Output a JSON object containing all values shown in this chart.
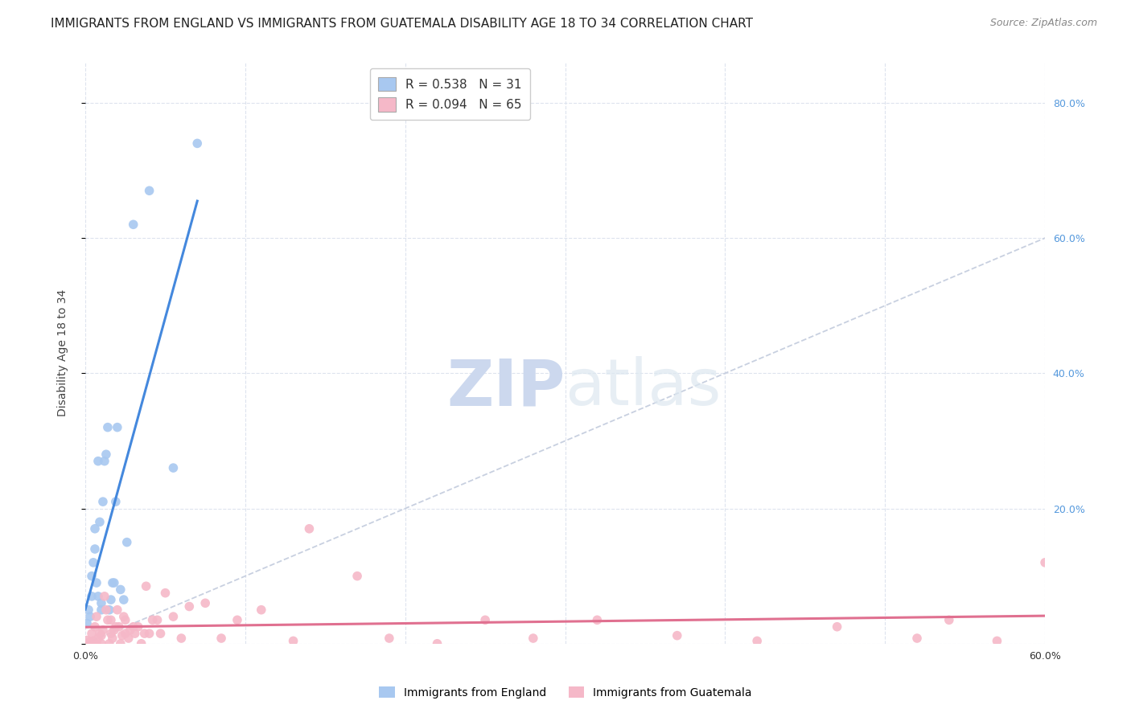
{
  "title": "IMMIGRANTS FROM ENGLAND VS IMMIGRANTS FROM GUATEMALA DISABILITY AGE 18 TO 34 CORRELATION CHART",
  "source": "Source: ZipAtlas.com",
  "ylabel": "Disability Age 18 to 34",
  "xlim": [
    0.0,
    0.6
  ],
  "ylim": [
    0.0,
    0.86
  ],
  "xticks": [
    0.0,
    0.1,
    0.2,
    0.3,
    0.4,
    0.5,
    0.6
  ],
  "xtick_labels": [
    "0.0%",
    "",
    "",
    "",
    "",
    "",
    "60.0%"
  ],
  "yticks": [
    0.0,
    0.2,
    0.4,
    0.6,
    0.8
  ],
  "ytick_labels_right": [
    "",
    "20.0%",
    "40.0%",
    "60.0%",
    "80.0%"
  ],
  "england_color": "#a8c8f0",
  "guatemala_color": "#f5b8c8",
  "england_line_color": "#4488dd",
  "guatemala_line_color": "#e07090",
  "diagonal_color": "#c8d0e0",
  "england_R": 0.538,
  "england_N": 31,
  "guatemala_R": 0.094,
  "guatemala_N": 65,
  "england_x": [
    0.001,
    0.002,
    0.003,
    0.004,
    0.004,
    0.005,
    0.006,
    0.006,
    0.007,
    0.008,
    0.008,
    0.009,
    0.01,
    0.01,
    0.011,
    0.012,
    0.013,
    0.014,
    0.015,
    0.016,
    0.017,
    0.018,
    0.019,
    0.02,
    0.022,
    0.024,
    0.026,
    0.03,
    0.04,
    0.055,
    0.07
  ],
  "england_y": [
    0.03,
    0.05,
    0.04,
    0.07,
    0.1,
    0.12,
    0.14,
    0.17,
    0.09,
    0.07,
    0.27,
    0.18,
    0.06,
    0.05,
    0.21,
    0.27,
    0.28,
    0.32,
    0.05,
    0.065,
    0.09,
    0.09,
    0.21,
    0.32,
    0.08,
    0.065,
    0.15,
    0.62,
    0.67,
    0.26,
    0.74
  ],
  "guatemala_x": [
    0.0,
    0.001,
    0.002,
    0.003,
    0.004,
    0.005,
    0.006,
    0.007,
    0.007,
    0.008,
    0.009,
    0.01,
    0.01,
    0.011,
    0.012,
    0.013,
    0.014,
    0.015,
    0.016,
    0.016,
    0.017,
    0.018,
    0.019,
    0.02,
    0.021,
    0.022,
    0.023,
    0.024,
    0.025,
    0.025,
    0.027,
    0.028,
    0.03,
    0.031,
    0.033,
    0.035,
    0.037,
    0.038,
    0.04,
    0.042,
    0.045,
    0.047,
    0.05,
    0.055,
    0.06,
    0.065,
    0.075,
    0.085,
    0.095,
    0.11,
    0.13,
    0.14,
    0.17,
    0.19,
    0.22,
    0.25,
    0.28,
    0.32,
    0.37,
    0.42,
    0.47,
    0.52,
    0.54,
    0.57,
    0.6
  ],
  "guatemala_y": [
    0.0,
    0.005,
    0.0,
    0.003,
    0.015,
    0.004,
    0.025,
    0.0,
    0.04,
    0.008,
    0.015,
    0.0,
    0.012,
    0.02,
    0.07,
    0.05,
    0.035,
    0.0,
    0.015,
    0.035,
    0.008,
    0.02,
    0.025,
    0.05,
    0.025,
    0.0,
    0.012,
    0.04,
    0.015,
    0.035,
    0.008,
    0.02,
    0.025,
    0.015,
    0.025,
    0.0,
    0.015,
    0.085,
    0.015,
    0.035,
    0.035,
    0.015,
    0.075,
    0.04,
    0.008,
    0.055,
    0.06,
    0.008,
    0.035,
    0.05,
    0.004,
    0.17,
    0.1,
    0.008,
    0.0,
    0.035,
    0.008,
    0.035,
    0.012,
    0.004,
    0.025,
    0.008,
    0.035,
    0.004,
    0.12
  ],
  "background_color": "#ffffff",
  "watermark_zip": "ZIP",
  "watermark_atlas": "atlas",
  "watermark_color": "#ccd8ee",
  "title_fontsize": 11,
  "axis_label_fontsize": 10,
  "tick_fontsize": 9,
  "legend_fontsize": 11
}
